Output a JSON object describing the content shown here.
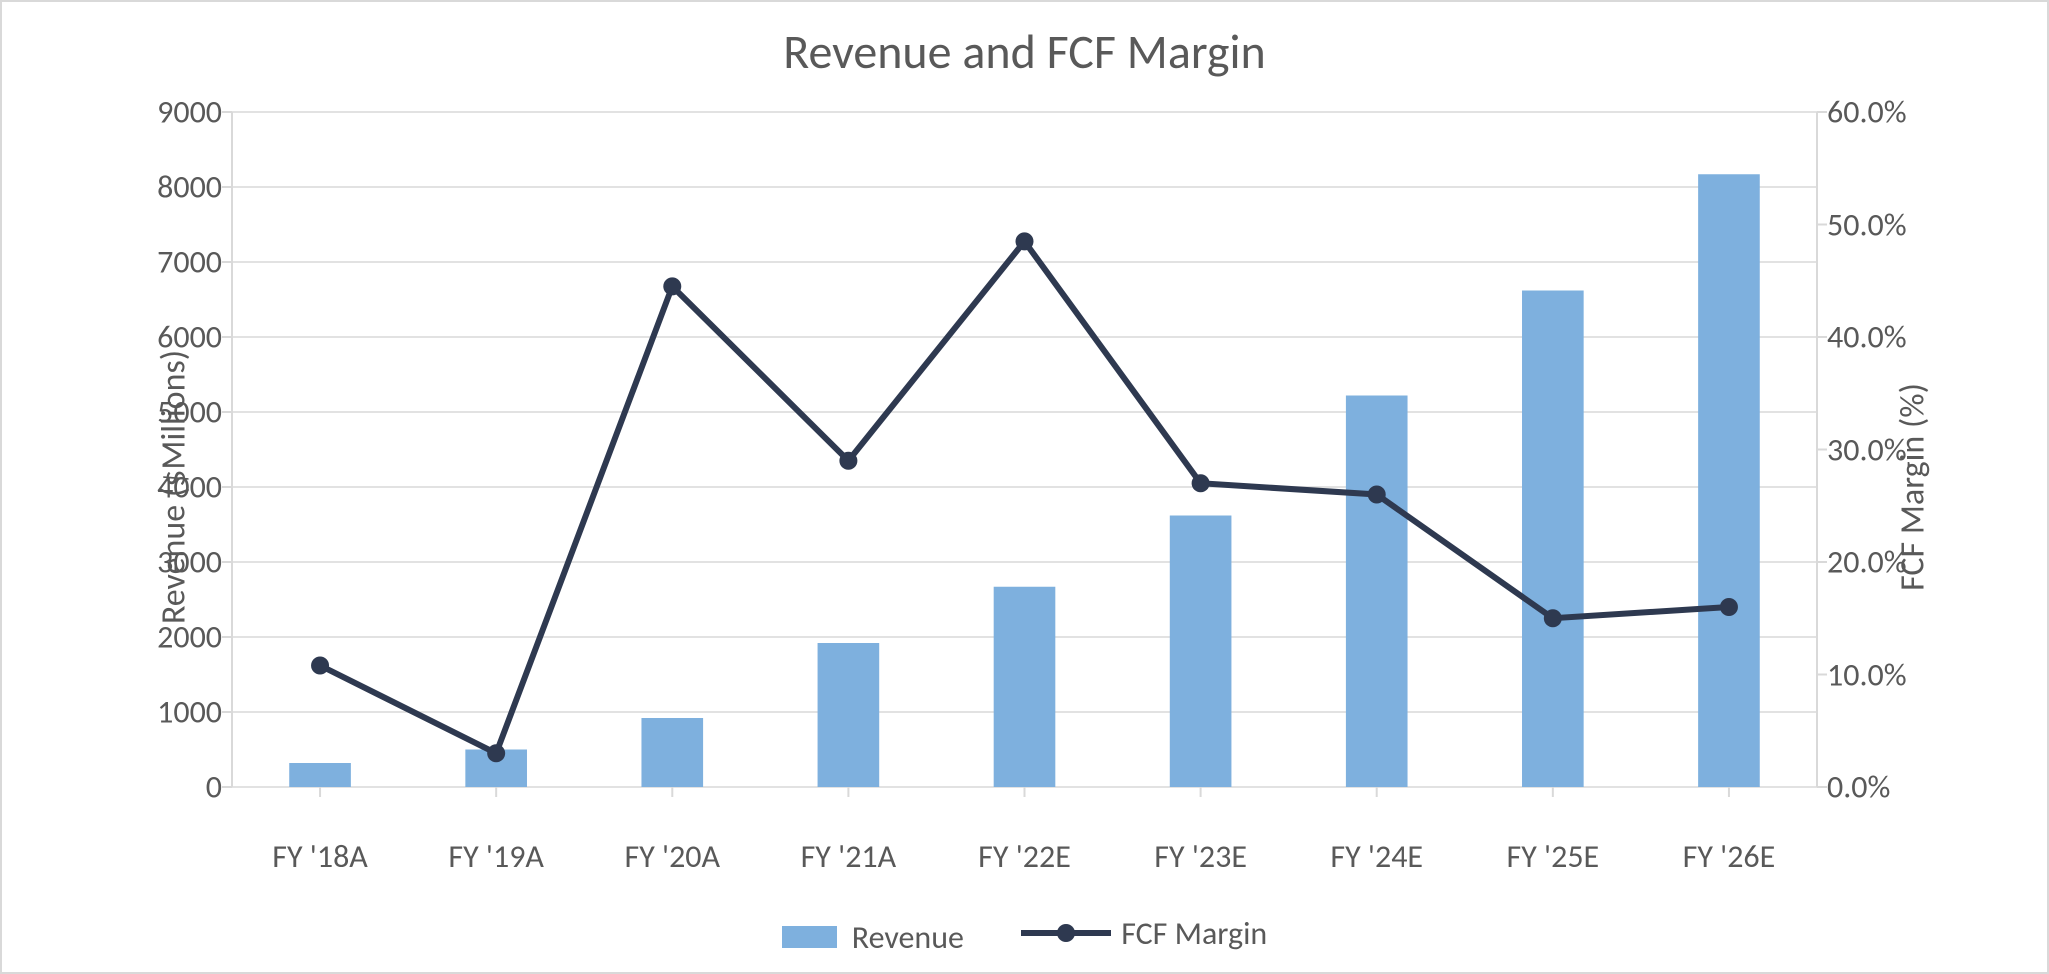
{
  "chart": {
    "type": "bar+line",
    "title": "Revenue and FCF Margin",
    "title_fontsize": 48,
    "background_color": "#ffffff",
    "border_color": "#d9d9d9",
    "categories": [
      "FY '18A",
      "FY '19A",
      "FY '20A",
      "FY '21A",
      "FY '22E",
      "FY '23E",
      "FY '24E",
      "FY '25E",
      "FY '26E"
    ],
    "bars": {
      "label": "Revenue",
      "axis_label": "Revenue ($Millions)",
      "values": [
        320,
        500,
        920,
        1920,
        2670,
        3620,
        5220,
        6620,
        8170
      ],
      "color": "#7eb0de",
      "ylim": [
        0,
        9000
      ],
      "ytick_step": 1000,
      "bar_width_fraction": 0.35
    },
    "line": {
      "label": "FCF Margin",
      "axis_label": "FCF Margin (%)",
      "values": [
        10.8,
        3.0,
        44.5,
        29.0,
        48.5,
        27.0,
        26.0,
        15.0,
        16.0
      ],
      "color": "#2e3950",
      "line_width": 6,
      "marker_radius": 9,
      "ylim": [
        0,
        60
      ],
      "ytick_step": 10,
      "tick_format": "percent1"
    },
    "gridline_color": "#d9d9d9",
    "axis_line_color": "#d9d9d9",
    "tick_label_fontsize": 32,
    "axis_label_fontsize": 34,
    "text_color": "#595959",
    "legend": {
      "position": "bottom-center",
      "fontsize": 32,
      "items": [
        {
          "label": "Revenue",
          "type": "bar",
          "color": "#7eb0de"
        },
        {
          "label": "FCF Margin",
          "type": "line-marker",
          "color": "#2e3950"
        }
      ]
    }
  }
}
